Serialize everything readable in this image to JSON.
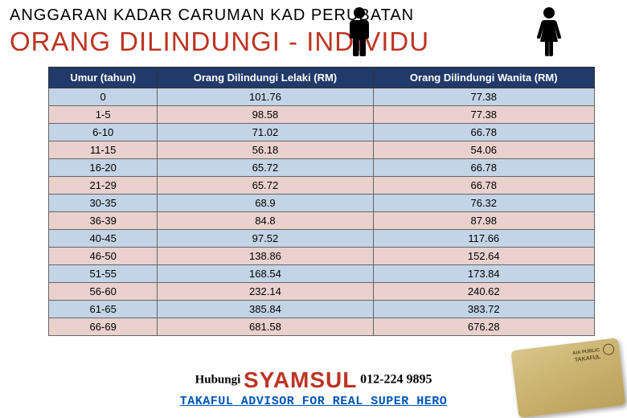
{
  "header": {
    "title1": "ANGGARAN KADAR CARUMAN KAD PERUBATAN",
    "title2": "ORANG DILINDUNGI - INDIVIDU"
  },
  "table": {
    "type": "table",
    "header_bg": "#213a6a",
    "header_color": "#ffffff",
    "row_colors": {
      "even": "#c3d4e6",
      "odd": "#ead1ce"
    },
    "border_color": "#666666",
    "columns": [
      {
        "label": "Umur (tahun)",
        "align": "center"
      },
      {
        "label": "Orang Dilindungi Lelaki (RM)",
        "align": "center"
      },
      {
        "label": "Orang Dilindungi Wanita (RM)",
        "align": "center"
      }
    ],
    "rows": [
      [
        "0",
        "101.76",
        "77.38"
      ],
      [
        "1-5",
        "98.58",
        "77.38"
      ],
      [
        "6-10",
        "71.02",
        "66.78"
      ],
      [
        "11-15",
        "56.18",
        "54.06"
      ],
      [
        "16-20",
        "65.72",
        "66.78"
      ],
      [
        "21-29",
        "65.72",
        "66.78"
      ],
      [
        "30-35",
        "68.9",
        "76.32"
      ],
      [
        "36-39",
        "84.8",
        "87.98"
      ],
      [
        "40-45",
        "97.52",
        "117.66"
      ],
      [
        "46-50",
        "138.86",
        "152.64"
      ],
      [
        "51-55",
        "168.54",
        "173.84"
      ],
      [
        "56-60",
        "232.14",
        "240.62"
      ],
      [
        "61-65",
        "385.84",
        "383.72"
      ],
      [
        "66-69",
        "681.58",
        "676.28"
      ]
    ]
  },
  "footer": {
    "contact_label": "Hubungi",
    "contact_name": "SYAMSUL",
    "contact_phone": "012-224 9895",
    "tagline": "TAKAFUL ADVISOR FOR REAL SUPER HERO"
  },
  "card": {
    "line1": "AIA PUBLIC",
    "line2": "TAKAFUL",
    "bg_from": "#d8c68a",
    "bg_to": "#baa05a"
  },
  "colors": {
    "accent_red": "#bd3423",
    "link_blue": "#0055b8",
    "black": "#000000"
  }
}
